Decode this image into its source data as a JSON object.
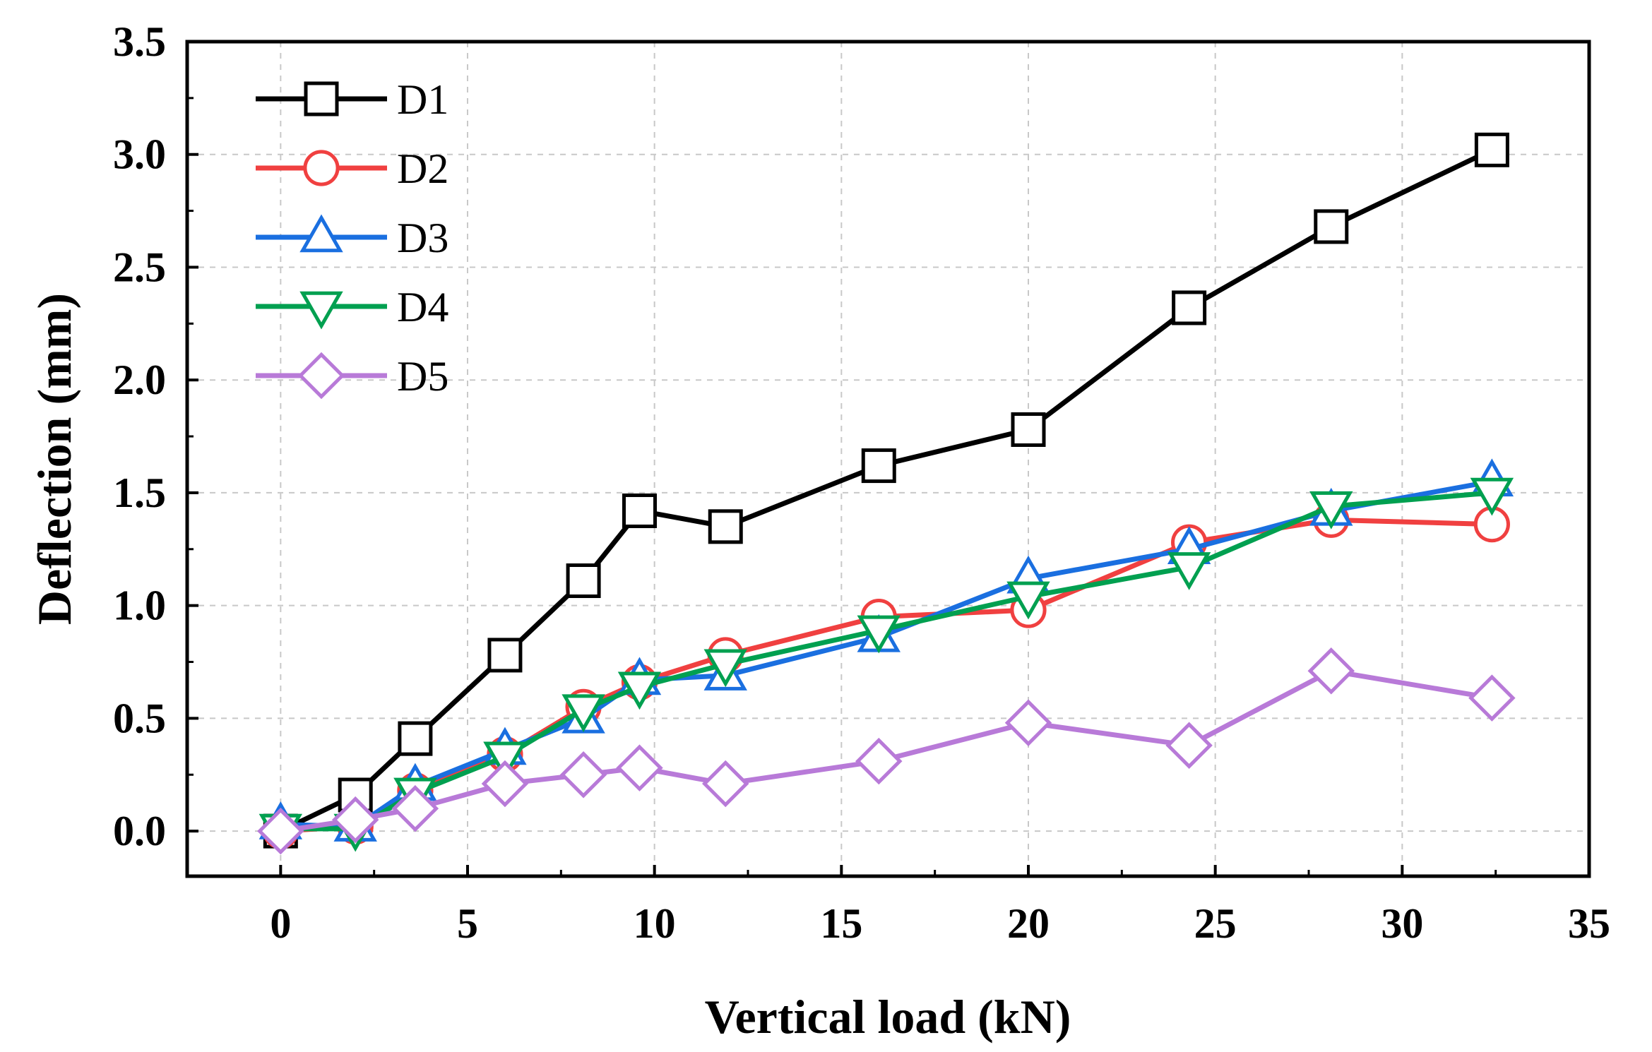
{
  "chart_data": {
    "type": "line",
    "title": "",
    "xlabel": "Vertical load (kN)",
    "ylabel": "Deflection (mm)",
    "xlim": [
      -2.5,
      35
    ],
    "ylim": [
      -0.2,
      3.5
    ],
    "xticks": [
      0,
      5,
      10,
      15,
      20,
      25,
      30,
      35
    ],
    "yticks": [
      0.0,
      0.5,
      1.0,
      1.5,
      2.0,
      2.5,
      3.0,
      3.5
    ],
    "xtick_labels": [
      "0",
      "5",
      "10",
      "15",
      "20",
      "25",
      "30",
      "35"
    ],
    "ytick_labels": [
      "0.0",
      "0.5",
      "1.0",
      "1.5",
      "2.0",
      "2.5",
      "3.0",
      "3.5"
    ],
    "grid": true,
    "legend_position": "top-left",
    "series": [
      {
        "name": "D1",
        "color": "#000000",
        "marker": "square",
        "x": [
          0,
          2,
          3.6,
          6,
          8.1,
          9.6,
          11.9,
          16,
          20,
          24.3,
          28.1,
          32.4
        ],
        "y": [
          0,
          0.16,
          0.41,
          0.78,
          1.11,
          1.42,
          1.35,
          1.62,
          1.78,
          2.32,
          2.68,
          3.02
        ]
      },
      {
        "name": "D2",
        "color": "#f04040",
        "marker": "circle",
        "x": [
          0,
          2,
          3.6,
          6,
          8.1,
          9.6,
          11.9,
          16,
          20,
          24.3,
          28.1,
          32.4
        ],
        "y": [
          0,
          0.02,
          0.18,
          0.34,
          0.55,
          0.66,
          0.78,
          0.95,
          0.98,
          1.28,
          1.38,
          1.36
        ]
      },
      {
        "name": "D3",
        "color": "#1a6fe0",
        "marker": "triangle-up",
        "x": [
          0,
          2,
          3.6,
          6,
          8.1,
          9.6,
          11.9,
          16,
          20,
          24.3,
          28.1,
          32.4
        ],
        "y": [
          0.03,
          0.02,
          0.2,
          0.36,
          0.5,
          0.67,
          0.69,
          0.86,
          1.12,
          1.25,
          1.42,
          1.55
        ]
      },
      {
        "name": "D4",
        "color": "#00a050",
        "marker": "triangle-down",
        "x": [
          0,
          2,
          3.6,
          6,
          8.1,
          9.6,
          11.9,
          16,
          20,
          24.3,
          28.1,
          32.4
        ],
        "y": [
          0.01,
          0.01,
          0.17,
          0.33,
          0.54,
          0.64,
          0.74,
          0.89,
          1.04,
          1.17,
          1.44,
          1.5
        ]
      },
      {
        "name": "D5",
        "color": "#b87ad8",
        "marker": "diamond",
        "x": [
          0,
          2,
          3.6,
          6,
          8.1,
          9.6,
          11.9,
          16,
          20,
          24.3,
          28.1,
          32.4
        ],
        "y": [
          0,
          0.05,
          0.1,
          0.21,
          0.25,
          0.28,
          0.21,
          0.31,
          0.48,
          0.38,
          0.71,
          0.59
        ]
      }
    ]
  }
}
